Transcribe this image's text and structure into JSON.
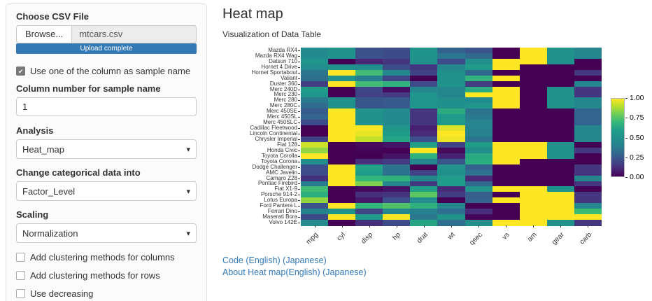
{
  "sidebar": {
    "file_input": {
      "label": "Choose CSV File",
      "browse_label": "Browse...",
      "filename": "mtcars.csv",
      "progress_label": "Upload complete"
    },
    "sample_checkbox": {
      "label": "Use one of the column as sample name",
      "checked": true
    },
    "column_number": {
      "label": "Column number for sample name",
      "value": "1"
    },
    "analysis": {
      "label": "Analysis",
      "value": "Heat_map"
    },
    "categorical": {
      "label": "Change categorical data into",
      "value": "Factor_Level"
    },
    "scaling": {
      "label": "Scaling",
      "value": "Normalization"
    },
    "options": [
      {
        "label": "Add clustering methods for columns",
        "checked": false
      },
      {
        "label": "Add clustering methods for rows",
        "checked": false
      },
      {
        "label": "Use decreasing",
        "checked": false
      }
    ]
  },
  "main": {
    "title": "Heat map",
    "subtitle": "Visualization of Data Table",
    "links": [
      {
        "text": "Code (English) (Japanese)"
      },
      {
        "text": "About Heat map(English) (Japanese)"
      }
    ]
  },
  "chart_data": {
    "type": "heatmap",
    "colormap": "viridis",
    "scaling": "min-max normalization per column (0-1)",
    "legend_ticks": [
      "0.00",
      "0.25",
      "0.50",
      "0.75",
      "1.00"
    ],
    "columns": [
      "mpg",
      "cyl",
      "disp",
      "hp",
      "drat",
      "wt",
      "qsec",
      "vs",
      "am",
      "gear",
      "carb"
    ],
    "rows": [
      "Mazda RX4",
      "Mazda RX4 Wag",
      "Datsun 710",
      "Hornet 4 Drive",
      "Hornet Sportabout",
      "Valiant",
      "Duster 360",
      "Merc 240D",
      "Merc 230",
      "Merc 280",
      "Merc 280C",
      "Merc 450SE",
      "Merc 450SL",
      "Merc 450SLC",
      "Cadillac Fleetwood",
      "Lincoln Continental",
      "Chrysler Imperial",
      "Fiat 128",
      "Honda Civic",
      "Toyota Corolla",
      "Toyota Corona",
      "Dodge Challenger",
      "AMC Javelin",
      "Camaro Z28",
      "Pontiac Firebird",
      "Fiat X1-9",
      "Porsche 914-2",
      "Lotus Europa",
      "Ford Pantera L",
      "Ferrari Dino",
      "Maserati Bora",
      "Volvo 142E"
    ],
    "values": [
      [
        21.0,
        6,
        160.0,
        110,
        3.9,
        2.62,
        16.46,
        0,
        1,
        4,
        4
      ],
      [
        21.0,
        6,
        160.0,
        110,
        3.9,
        2.875,
        17.02,
        0,
        1,
        4,
        4
      ],
      [
        22.8,
        4,
        108.0,
        93,
        3.85,
        2.32,
        18.61,
        1,
        1,
        4,
        1
      ],
      [
        21.4,
        6,
        258.0,
        110,
        3.08,
        3.215,
        19.44,
        1,
        0,
        3,
        1
      ],
      [
        18.7,
        8,
        360.0,
        175,
        3.15,
        3.44,
        17.02,
        0,
        0,
        3,
        2
      ],
      [
        18.1,
        6,
        225.0,
        105,
        2.76,
        3.46,
        20.22,
        1,
        0,
        3,
        1
      ],
      [
        14.3,
        8,
        360.0,
        245,
        3.21,
        3.57,
        15.84,
        0,
        0,
        3,
        4
      ],
      [
        24.4,
        4,
        146.7,
        62,
        3.69,
        3.19,
        20.0,
        1,
        0,
        4,
        2
      ],
      [
        22.8,
        4,
        140.8,
        95,
        3.92,
        3.15,
        22.9,
        1,
        0,
        4,
        2
      ],
      [
        19.2,
        6,
        167.6,
        123,
        3.92,
        3.44,
        18.3,
        1,
        0,
        4,
        4
      ],
      [
        17.8,
        6,
        167.6,
        123,
        3.92,
        3.44,
        18.9,
        1,
        0,
        4,
        4
      ],
      [
        16.4,
        8,
        275.8,
        180,
        3.07,
        4.07,
        17.4,
        0,
        0,
        3,
        3
      ],
      [
        17.3,
        8,
        275.8,
        180,
        3.07,
        3.73,
        17.6,
        0,
        0,
        3,
        3
      ],
      [
        15.2,
        8,
        275.8,
        180,
        3.07,
        3.78,
        18.0,
        0,
        0,
        3,
        3
      ],
      [
        10.4,
        8,
        472.0,
        205,
        2.93,
        5.25,
        17.98,
        0,
        0,
        3,
        4
      ],
      [
        10.4,
        8,
        460.0,
        215,
        3.0,
        5.424,
        17.82,
        0,
        0,
        3,
        4
      ],
      [
        14.7,
        8,
        440.0,
        230,
        3.23,
        5.345,
        17.42,
        0,
        0,
        3,
        4
      ],
      [
        32.4,
        4,
        78.7,
        66,
        4.08,
        2.2,
        19.47,
        1,
        1,
        4,
        1
      ],
      [
        30.4,
        4,
        75.7,
        52,
        4.93,
        1.615,
        18.52,
        1,
        1,
        4,
        2
      ],
      [
        33.9,
        4,
        71.1,
        65,
        4.22,
        1.835,
        19.9,
        1,
        1,
        4,
        1
      ],
      [
        21.5,
        4,
        120.1,
        97,
        3.7,
        2.465,
        20.01,
        1,
        0,
        3,
        1
      ],
      [
        15.5,
        8,
        318.0,
        150,
        2.76,
        3.52,
        16.87,
        0,
        0,
        3,
        2
      ],
      [
        15.2,
        8,
        304.0,
        150,
        3.15,
        3.435,
        17.3,
        0,
        0,
        3,
        2
      ],
      [
        13.3,
        8,
        350.0,
        245,
        3.73,
        3.84,
        15.41,
        0,
        0,
        3,
        4
      ],
      [
        19.2,
        8,
        400.0,
        175,
        3.08,
        3.845,
        17.05,
        0,
        0,
        3,
        2
      ],
      [
        27.3,
        4,
        79.0,
        66,
        4.08,
        1.935,
        18.9,
        1,
        1,
        4,
        1
      ],
      [
        26.0,
        4,
        120.3,
        91,
        4.43,
        2.14,
        16.7,
        0,
        1,
        5,
        2
      ],
      [
        30.4,
        4,
        95.1,
        113,
        3.77,
        1.513,
        16.9,
        1,
        1,
        5,
        2
      ],
      [
        15.8,
        8,
        351.0,
        264,
        4.22,
        3.17,
        14.5,
        0,
        1,
        5,
        4
      ],
      [
        19.7,
        6,
        145.0,
        175,
        3.62,
        2.77,
        15.5,
        0,
        1,
        5,
        6
      ],
      [
        15.0,
        8,
        301.0,
        335,
        3.54,
        3.57,
        14.6,
        0,
        1,
        5,
        8
      ],
      [
        21.4,
        4,
        121.0,
        109,
        4.11,
        2.78,
        18.6,
        1,
        1,
        4,
        2
      ]
    ]
  },
  "colors": {
    "accent_blue": "#337ab7",
    "label_text": "#333333",
    "viridis_low": "#440154",
    "viridis_mid": "#21918c",
    "viridis_high": "#fde725"
  }
}
